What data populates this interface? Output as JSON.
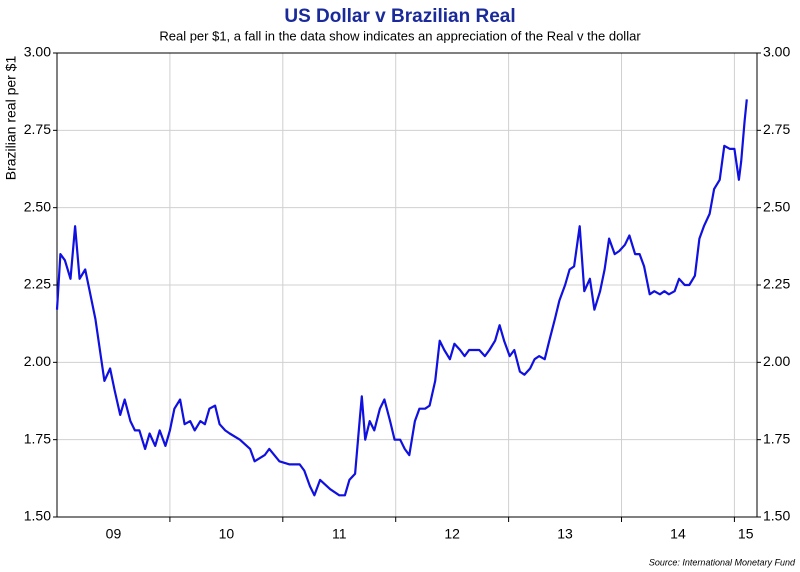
{
  "chart_data": {
    "type": "line",
    "title": "US Dollar v Brazilian Real",
    "subtitle": "Real per $1, a fall in the data show indicates an appreciation of the Real v the dollar",
    "y_label": "Brazilian real per $1",
    "source": "Source: International Monetary Fund",
    "x": [
      9.0,
      9.03,
      9.07,
      9.12,
      9.16,
      9.2,
      9.25,
      9.29,
      9.34,
      9.38,
      9.42,
      9.47,
      9.51,
      9.56,
      9.6,
      9.65,
      9.69,
      9.73,
      9.78,
      9.82,
      9.87,
      9.91,
      9.96,
      10.0,
      10.04,
      10.09,
      10.13,
      10.18,
      10.22,
      10.27,
      10.31,
      10.35,
      10.4,
      10.44,
      10.49,
      10.53,
      10.62,
      10.71,
      10.75,
      10.84,
      10.88,
      10.97,
      11.06,
      11.15,
      11.19,
      11.24,
      11.28,
      11.33,
      11.42,
      11.5,
      11.55,
      11.59,
      11.64,
      11.68,
      11.7,
      11.73,
      11.77,
      11.81,
      11.86,
      11.9,
      11.95,
      11.99,
      12.04,
      12.08,
      12.12,
      12.17,
      12.21,
      12.26,
      12.3,
      12.35,
      12.39,
      12.43,
      12.48,
      12.52,
      12.57,
      12.61,
      12.65,
      12.7,
      12.74,
      12.79,
      12.83,
      12.88,
      12.92,
      12.96,
      13.01,
      13.05,
      13.1,
      13.14,
      13.19,
      13.23,
      13.27,
      13.32,
      13.36,
      13.41,
      13.45,
      13.5,
      13.54,
      13.58,
      13.63,
      13.67,
      13.72,
      13.76,
      13.81,
      13.85,
      13.89,
      13.94,
      13.98,
      14.03,
      14.07,
      14.12,
      14.16,
      14.2,
      14.25,
      14.29,
      14.34,
      14.38,
      14.42,
      14.47,
      14.51,
      14.56,
      14.6,
      14.65,
      14.69,
      14.73,
      14.78,
      14.82,
      14.87,
      14.91,
      14.96,
      15.0,
      15.04,
      15.06,
      15.09,
      15.11
    ],
    "series": [
      {
        "name": "Real per $1",
        "color": "#1010e0",
        "values": [
          2.17,
          2.35,
          2.33,
          2.27,
          2.44,
          2.27,
          2.3,
          2.23,
          2.14,
          2.04,
          1.94,
          1.98,
          1.91,
          1.83,
          1.88,
          1.81,
          1.78,
          1.78,
          1.72,
          1.77,
          1.73,
          1.78,
          1.73,
          1.78,
          1.85,
          1.88,
          1.8,
          1.81,
          1.78,
          1.81,
          1.8,
          1.85,
          1.86,
          1.8,
          1.78,
          1.77,
          1.75,
          1.72,
          1.68,
          1.7,
          1.72,
          1.68,
          1.67,
          1.67,
          1.65,
          1.6,
          1.57,
          1.62,
          1.59,
          1.57,
          1.57,
          1.62,
          1.64,
          1.81,
          1.89,
          1.75,
          1.81,
          1.78,
          1.85,
          1.88,
          1.81,
          1.75,
          1.75,
          1.72,
          1.7,
          1.81,
          1.85,
          1.85,
          1.86,
          1.94,
          2.07,
          2.04,
          2.01,
          2.06,
          2.04,
          2.02,
          2.04,
          2.04,
          2.04,
          2.02,
          2.04,
          2.07,
          2.12,
          2.07,
          2.02,
          2.04,
          1.97,
          1.96,
          1.98,
          2.01,
          2.02,
          2.01,
          2.07,
          2.14,
          2.2,
          2.25,
          2.3,
          2.31,
          2.44,
          2.23,
          2.27,
          2.17,
          2.23,
          2.3,
          2.4,
          2.35,
          2.36,
          2.38,
          2.41,
          2.35,
          2.35,
          2.31,
          2.22,
          2.23,
          2.22,
          2.23,
          2.22,
          2.23,
          2.27,
          2.25,
          2.25,
          2.28,
          2.4,
          2.44,
          2.48,
          2.56,
          2.59,
          2.7,
          2.69,
          2.69,
          2.59,
          2.65,
          2.78,
          2.85
        ]
      }
    ],
    "xlim": [
      9,
      15.2
    ],
    "xticks": [
      {
        "value": 9.5,
        "label": "09"
      },
      {
        "value": 10.5,
        "label": "10"
      },
      {
        "value": 11.5,
        "label": "11"
      },
      {
        "value": 12.5,
        "label": "12"
      },
      {
        "value": 13.5,
        "label": "13"
      },
      {
        "value": 14.5,
        "label": "14"
      },
      {
        "value": 15.1,
        "label": "15"
      }
    ],
    "ylim": [
      1.5,
      3
    ],
    "yticks": [
      {
        "value": 1.5,
        "label": "1.50"
      },
      {
        "value": 1.75,
        "label": "1.75"
      },
      {
        "value": 2,
        "label": "2.00"
      },
      {
        "value": 2.25,
        "label": "2.25"
      },
      {
        "value": 2.5,
        "label": "2.50"
      },
      {
        "value": 2.75,
        "label": "2.75"
      },
      {
        "value": 3,
        "label": "3.00"
      }
    ],
    "grid": true
  }
}
